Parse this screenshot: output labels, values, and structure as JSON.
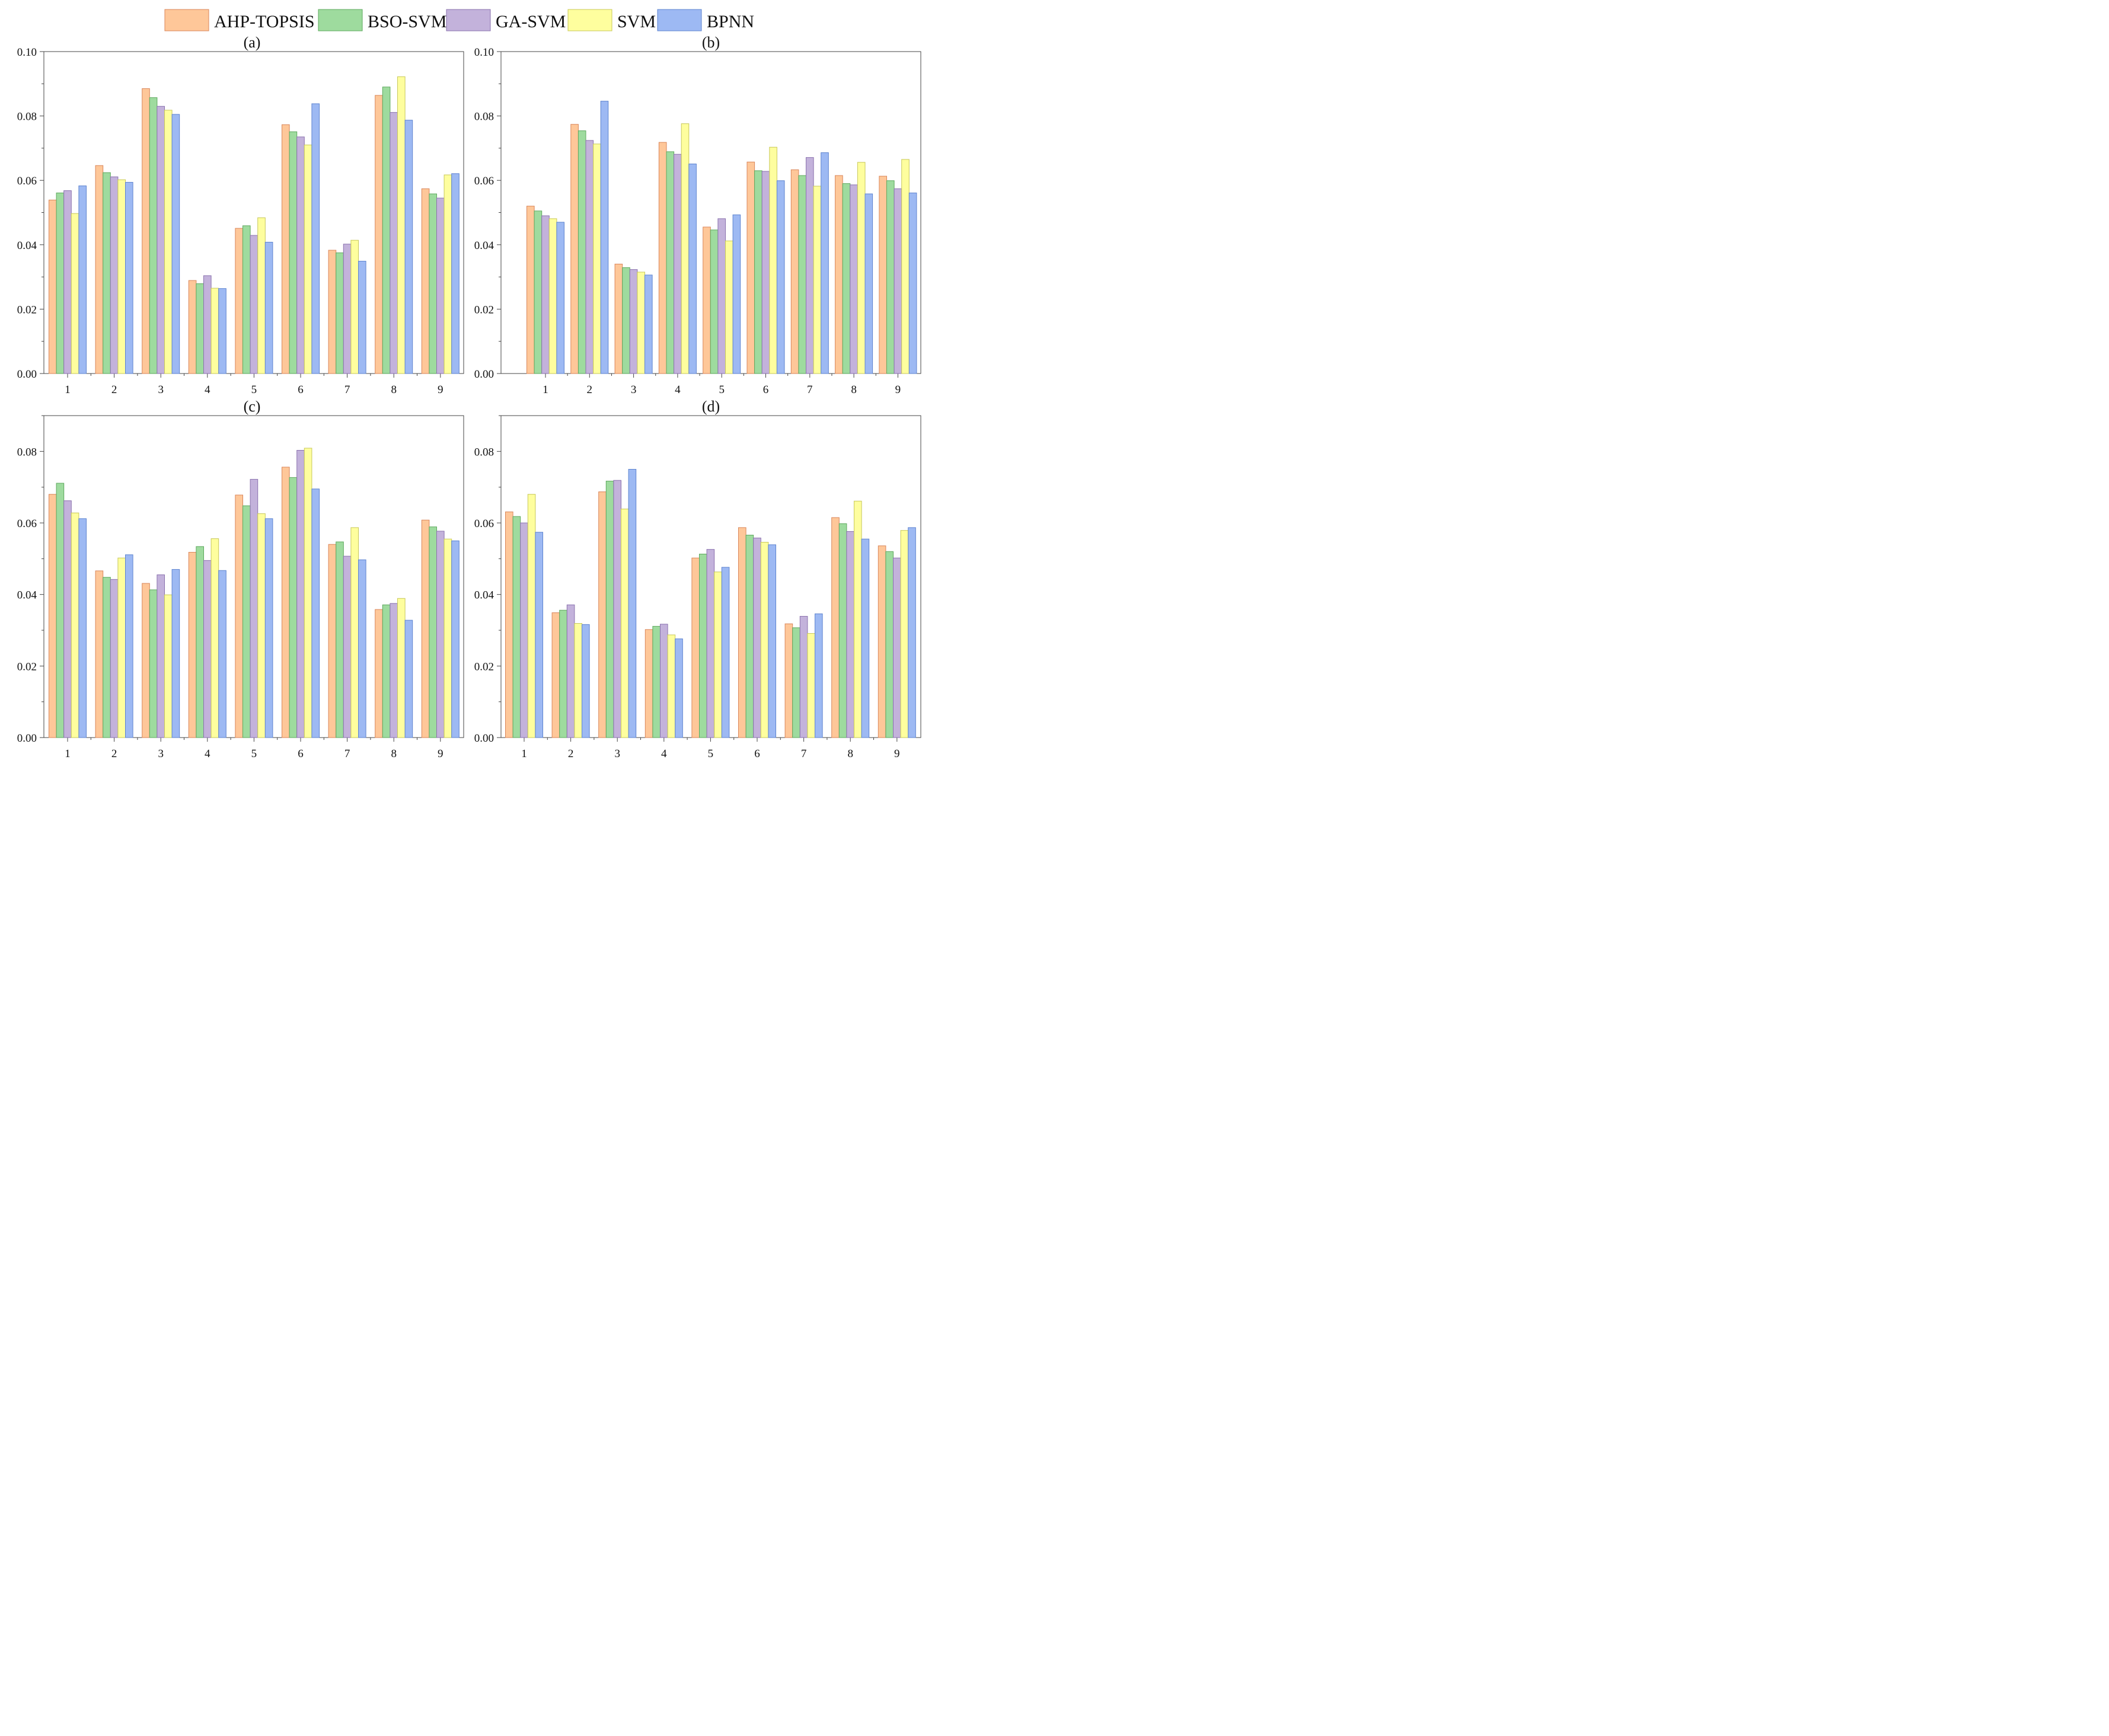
{
  "legend": [
    {
      "label": "AHP-TOPSIS",
      "color": "#FEC799",
      "stroke": "#D9865A"
    },
    {
      "label": "BSO-SVM",
      "color": "#9EDB9E",
      "stroke": "#5EA85E"
    },
    {
      "label": "GA-SVM",
      "color": "#C3B2DB",
      "stroke": "#8A72AE"
    },
    {
      "label": "SVM",
      "color": "#FEFE9E",
      "stroke": "#C8C85A"
    },
    {
      "label": "BPNN",
      "color": "#9DB9F3",
      "stroke": "#5E84CF"
    }
  ],
  "chart_data": [
    {
      "type": "bar",
      "title": "(a)",
      "categories": [
        "1",
        "2",
        "3",
        "4",
        "5",
        "6",
        "7",
        "8",
        "9"
      ],
      "ylim": [
        0,
        0.1
      ],
      "yticks": [
        "0.00",
        "0.02",
        "0.04",
        "0.06",
        "0.08",
        "0.10"
      ],
      "series": [
        {
          "name": "AHP-TOPSIS",
          "values": [
            0.0539,
            0.0646,
            0.0885,
            0.0289,
            0.0451,
            0.0773,
            0.0383,
            0.0864,
            0.0574
          ]
        },
        {
          "name": "BSO-SVM",
          "values": [
            0.0561,
            0.0624,
            0.0857,
            0.0279,
            0.0459,
            0.0751,
            0.0375,
            0.089,
            0.0558
          ]
        },
        {
          "name": "GA-SVM",
          "values": [
            0.0568,
            0.0611,
            0.083,
            0.0304,
            0.0429,
            0.0735,
            0.0402,
            0.0811,
            0.0545
          ]
        },
        {
          "name": "SVM",
          "values": [
            0.0497,
            0.0602,
            0.0818,
            0.0265,
            0.0484,
            0.071,
            0.0414,
            0.0922,
            0.0617
          ]
        },
        {
          "name": "BPNN",
          "values": [
            0.0583,
            0.0594,
            0.0805,
            0.0264,
            0.0408,
            0.0838,
            0.0349,
            0.0787,
            0.0621
          ]
        }
      ]
    },
    {
      "type": "bar",
      "title": "(b)",
      "categories": [
        "1",
        "2",
        "3",
        "4",
        "5",
        "6",
        "7",
        "8",
        "9"
      ],
      "ylim": [
        0,
        0.1
      ],
      "yticks": [
        "0.00",
        "0.02",
        "0.04",
        "0.06",
        "0.08",
        "0.10"
      ],
      "series": [
        {
          "name": "AHP-TOPSIS",
          "values": [
            0.052,
            0.0774,
            0.034,
            0.0718,
            0.0455,
            0.0657,
            0.0633,
            0.0615,
            0.0613
          ]
        },
        {
          "name": "BSO-SVM",
          "values": [
            0.0505,
            0.0754,
            0.0329,
            0.0689,
            0.0446,
            0.063,
            0.0615,
            0.059,
            0.0599
          ]
        },
        {
          "name": "GA-SVM",
          "values": [
            0.049,
            0.0724,
            0.0323,
            0.0681,
            0.0481,
            0.0628,
            0.0671,
            0.0586,
            0.0574
          ]
        },
        {
          "name": "SVM",
          "values": [
            0.0481,
            0.0713,
            0.0315,
            0.0776,
            0.0412,
            0.0703,
            0.0582,
            0.0656,
            0.0665
          ]
        },
        {
          "name": "BPNN",
          "values": [
            0.047,
            0.0846,
            0.0306,
            0.0651,
            0.0493,
            0.0599,
            0.0686,
            0.0558,
            0.0561
          ]
        }
      ]
    },
    {
      "type": "bar",
      "title": "(c)",
      "categories": [
        "1",
        "2",
        "3",
        "4",
        "5",
        "6",
        "7",
        "8",
        "9"
      ],
      "ylim": [
        0,
        0.09
      ],
      "yticks": [
        "0.00",
        "0.02",
        "0.04",
        "0.06",
        "0.08"
      ],
      "series": [
        {
          "name": "AHP-TOPSIS",
          "values": [
            0.068,
            0.0466,
            0.0431,
            0.0518,
            0.0678,
            0.0756,
            0.054,
            0.0358,
            0.0608
          ]
        },
        {
          "name": "BSO-SVM",
          "values": [
            0.0711,
            0.0448,
            0.0413,
            0.0534,
            0.0648,
            0.0727,
            0.0547,
            0.0371,
            0.0589
          ]
        },
        {
          "name": "GA-SVM",
          "values": [
            0.0662,
            0.0442,
            0.0455,
            0.0495,
            0.0722,
            0.0803,
            0.0507,
            0.0375,
            0.0577
          ]
        },
        {
          "name": "SVM",
          "values": [
            0.0628,
            0.0502,
            0.0399,
            0.0556,
            0.0626,
            0.0809,
            0.0587,
            0.0389,
            0.0555
          ]
        },
        {
          "name": "BPNN",
          "values": [
            0.0612,
            0.0511,
            0.047,
            0.0467,
            0.0612,
            0.0695,
            0.0497,
            0.0328,
            0.055
          ]
        }
      ]
    },
    {
      "type": "bar",
      "title": "(d)",
      "categories": [
        "1",
        "2",
        "3",
        "4",
        "5",
        "6",
        "7",
        "8",
        "9"
      ],
      "ylim": [
        0,
        0.09
      ],
      "yticks": [
        "0.00",
        "0.02",
        "0.04",
        "0.06",
        "0.08"
      ],
      "series": [
        {
          "name": "AHP-TOPSIS",
          "values": [
            0.0631,
            0.0349,
            0.0687,
            0.0302,
            0.0502,
            0.0587,
            0.0318,
            0.0615,
            0.0536
          ]
        },
        {
          "name": "BSO-SVM",
          "values": [
            0.0618,
            0.0356,
            0.0717,
            0.0311,
            0.0513,
            0.0566,
            0.0307,
            0.0598,
            0.052
          ]
        },
        {
          "name": "GA-SVM",
          "values": [
            0.06,
            0.0371,
            0.0719,
            0.0317,
            0.0526,
            0.0558,
            0.0339,
            0.0576,
            0.0502
          ]
        },
        {
          "name": "SVM",
          "values": [
            0.068,
            0.0319,
            0.0639,
            0.0287,
            0.0463,
            0.0546,
            0.0291,
            0.0661,
            0.0579
          ]
        },
        {
          "name": "BPNN",
          "values": [
            0.0574,
            0.0316,
            0.075,
            0.0276,
            0.0476,
            0.0539,
            0.0346,
            0.0555,
            0.0587
          ]
        }
      ]
    }
  ]
}
